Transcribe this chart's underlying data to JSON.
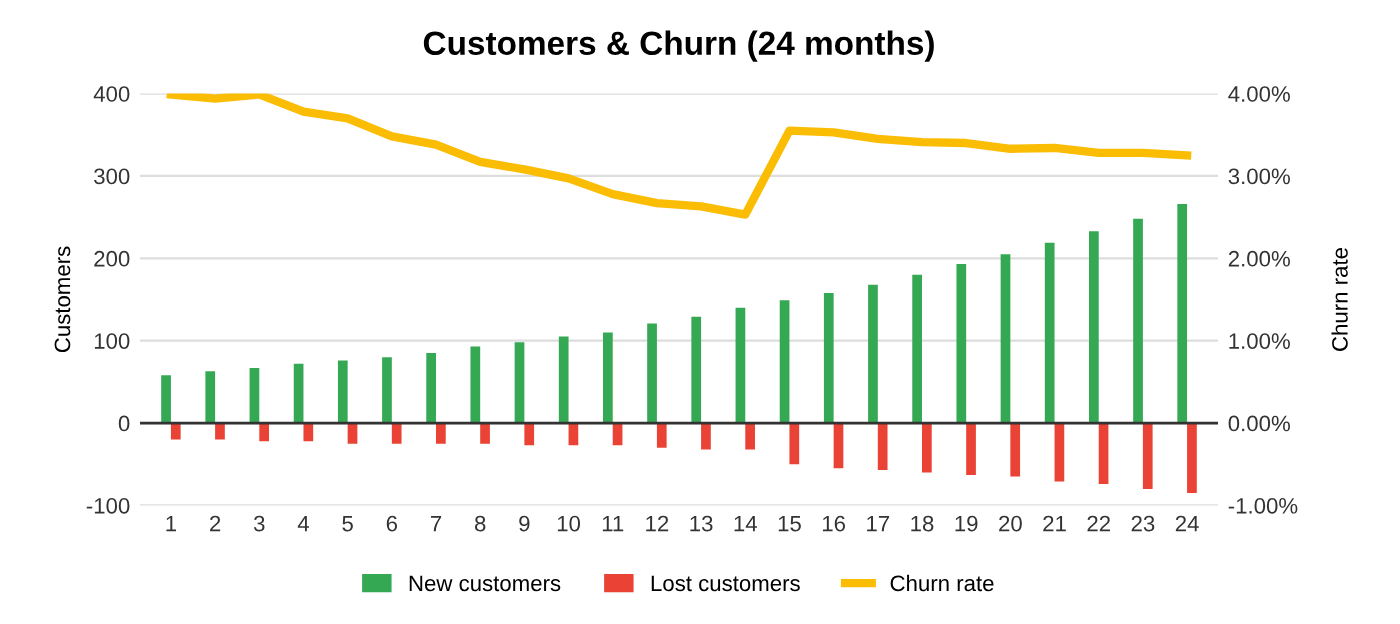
{
  "chart_data": {
    "type": "bar",
    "title": "Customers & Churn (24 months)",
    "categories": [
      "1",
      "2",
      "3",
      "4",
      "5",
      "6",
      "7",
      "8",
      "9",
      "10",
      "11",
      "12",
      "13",
      "14",
      "15",
      "16",
      "17",
      "18",
      "19",
      "20",
      "21",
      "22",
      "23",
      "24"
    ],
    "series": [
      {
        "name": "New customers",
        "color": "#34a853",
        "values": [
          58,
          63,
          67,
          72,
          76,
          80,
          85,
          93,
          98,
          105,
          110,
          121,
          129,
          140,
          149,
          158,
          168,
          180,
          193,
          205,
          219,
          233,
          248,
          266
        ]
      },
      {
        "name": "Lost customers",
        "color": "#ea4335",
        "values": [
          -20,
          -20,
          -22,
          -22,
          -25,
          -25,
          -25,
          -25,
          -27,
          -27,
          -27,
          -30,
          -32,
          -32,
          -50,
          -55,
          -57,
          -60,
          -63,
          -65,
          -71,
          -74,
          -80,
          -85
        ]
      },
      {
        "name": "Churn rate",
        "type": "line",
        "axis": "y2",
        "color": "#fbbc04",
        "values": [
          3.99,
          3.94,
          3.99,
          3.78,
          3.7,
          3.48,
          3.38,
          3.17,
          3.08,
          2.97,
          2.78,
          2.67,
          2.63,
          2.53,
          3.55,
          3.53,
          3.45,
          3.41,
          3.4,
          3.33,
          3.34,
          3.28,
          3.28,
          3.25
        ]
      }
    ],
    "ylabel": "Customers",
    "y2label": "Churn rate",
    "ylim": [
      -100,
      400
    ],
    "yticks": [
      -100,
      0,
      100,
      200,
      300,
      400
    ],
    "y2lim": [
      -1,
      4
    ],
    "y2ticks": [
      {
        "value": -1,
        "label": "-1.00%"
      },
      {
        "value": 0,
        "label": "0.00%"
      },
      {
        "value": 1,
        "label": "1.00%"
      },
      {
        "value": 2,
        "label": "2.00%"
      },
      {
        "value": 3,
        "label": "3.00%"
      },
      {
        "value": 4,
        "label": "4.00%"
      }
    ],
    "grid": "y",
    "legend": "bottom"
  }
}
